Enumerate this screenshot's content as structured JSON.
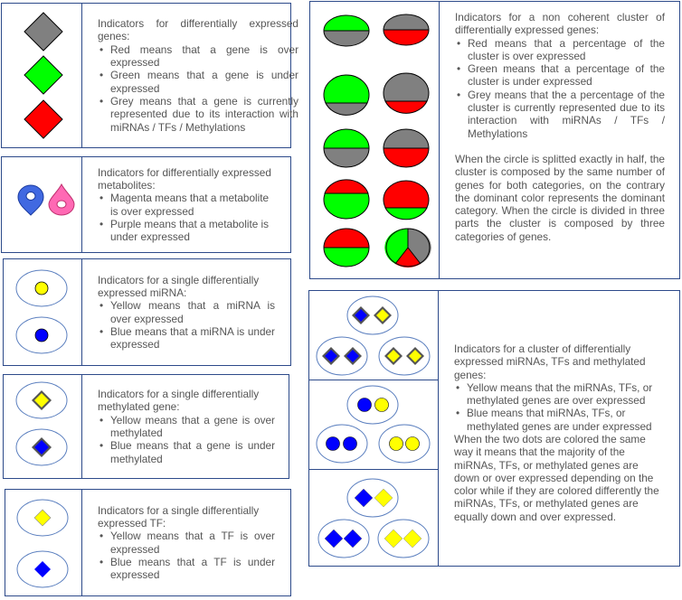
{
  "colors": {
    "red": "#ff0000",
    "green": "#00ff00",
    "grey": "#808080",
    "yellow": "#ffff00",
    "blue": "#0000ff",
    "magenta": "#ff69b4",
    "purple": "#4169e1",
    "border": "#2d4a8a"
  },
  "genes": {
    "title": "Indicators for differentially expressed genes:",
    "items": [
      "Red means that a gene is over expressed",
      "Green means that a gene is under expressed",
      "Grey means that a gene is currently represented due to its interaction with miRNAs / TFs / Methylations"
    ]
  },
  "metabolites": {
    "title": "Indicators for differentially expressed metabolites:",
    "items": [
      "Magenta means that a metabolite is over expressed",
      "Purple means that a metabolite is under expressed"
    ]
  },
  "mirna": {
    "title": "Indicators for a single differentially expressed miRNA:",
    "items": [
      "Yellow means that a miRNA is over expressed",
      "Blue means that a miRNA is under expressed"
    ]
  },
  "methylated": {
    "title": "Indicators for a single differentially methylated gene:",
    "items": [
      "Yellow means that a gene is over methylated",
      "Blue means that a gene is under methylated"
    ]
  },
  "tf": {
    "title": "Indicators for a single differentially expressed TF:",
    "items": [
      "Yellow means that a TF is over expressed",
      "Blue means that a TF is under expressed"
    ]
  },
  "cluster": {
    "title": "Indicators for a non coherent cluster of differentially expressed genes:",
    "items": [
      "Red means that a percentage of the cluster is over expressed",
      "Green means that a percentage of the cluster is under expressed",
      "Grey means that the a percentage of the cluster is currently represented due to its interaction with miRNAs / TFs / Methylations"
    ],
    "note": "When the circle is splitted exactly in half, the cluster is composed by the same number of genes for both categories, on the contrary the dominant color represents the dominant category. When the circle is divided in three parts the cluster is composed by three categories of genes."
  },
  "mixed": {
    "title": "Indicators for a cluster of differentially expressed miRNAs, TFs and methylated genes:",
    "items": [
      "Yellow means that the miRNAs, TFs, or methylated genes are over expressed",
      "Blue means that miRNAs, TFs, or methylated genes are under expressed"
    ],
    "note": "When the two dots are colored the same way it means that the majority of the miRNAs, TFs, or methylated genes are down or over expressed depending on the color while if they are colored differently the miRNAs, TFs, or methylated genes are equally down and over expressed."
  }
}
